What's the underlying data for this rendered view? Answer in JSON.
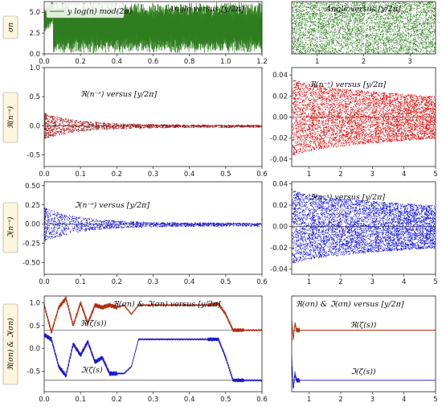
{
  "chart_data": [
    {
      "id": "angle-left",
      "type": "line",
      "title": "Angle versus [y/2π]",
      "legend": "y log(n) mod(2π)",
      "ylabel": "σn",
      "xlim": [
        0,
        1.2
      ],
      "ylim": [
        0,
        6.28
      ],
      "xticks": [
        "0.0",
        "0.2",
        "0.4",
        "0.6",
        "0.8",
        "1.0",
        "1.2"
      ],
      "yticks": [
        "0.0",
        "2.5",
        "5.0"
      ],
      "color": "#2e7d1e",
      "note": "dense oscillating angle values in [0, 2π]"
    },
    {
      "id": "angle-right",
      "type": "scatter",
      "title": "Angle versus [y/2π]",
      "xlim": [
        0.45,
        3.55
      ],
      "ylim": [
        0,
        6.28
      ],
      "xticks": [
        "1",
        "2",
        "3"
      ],
      "color": "#2e7d1e"
    },
    {
      "id": "real-left",
      "type": "scatter",
      "title": "ℜ(n⁻ˢ) versus [y/2π]",
      "ylabel": "ℜ(n⁻ˢ)",
      "xlim": [
        0,
        0.6
      ],
      "ylim": [
        -0.7,
        1.0
      ],
      "xticks": [
        "0.0",
        "0.1",
        "0.2",
        "0.3",
        "0.4",
        "0.5",
        "0.6"
      ],
      "yticks": [
        "-0.5",
        "0.0",
        "0.5",
        "1.0"
      ],
      "color": "#a01818",
      "envelope_start": 0.2
    },
    {
      "id": "real-right",
      "type": "scatter",
      "title": "ℜ(n⁻ˢ) versus [y/2π]",
      "xlim": [
        0.45,
        5.0
      ],
      "ylim": [
        -0.047,
        0.047
      ],
      "xticks": [
        "1",
        "2",
        "3",
        "4",
        "5"
      ],
      "yticks": [
        "-0.04",
        "-0.02",
        "0.00",
        "0.02",
        "0.04"
      ],
      "color": "#dd1a1a",
      "envelope_start": 0.038,
      "envelope_end": 0.02
    },
    {
      "id": "imag-left",
      "type": "scatter",
      "title": "ℑ(n⁻ˢ) versus [y/2π]",
      "ylabel": "ℑ(n⁻ˢ)",
      "xlim": [
        0,
        0.6
      ],
      "ylim": [
        -0.65,
        0.55
      ],
      "xticks": [
        "0.0",
        "0.1",
        "0.2",
        "0.3",
        "0.4",
        "0.5",
        "0.6"
      ],
      "yticks": [
        "-0.50",
        "-0.25",
        "0.00",
        "0.25",
        "0.50"
      ],
      "color": "#1a1ad0",
      "envelope_start": 0.2
    },
    {
      "id": "imag-right",
      "type": "scatter",
      "title": "ℑ(n⁻ˢ) versus [y/2π]",
      "xlim": [
        0.45,
        5.0
      ],
      "ylim": [
        -0.045,
        0.042
      ],
      "xticks": [
        "1",
        "2",
        "3",
        "4",
        "5"
      ],
      "yticks": [
        "-0.04",
        "-0.02",
        "0.00",
        "0.02",
        "0.04"
      ],
      "color": "#1a1ae0",
      "envelope_start": 0.036,
      "envelope_end": 0.02
    },
    {
      "id": "sum-left",
      "type": "line",
      "title": "ℜ(σn) & ℑ(σn) versus [y/2π]",
      "ylabel": "ℜ(σn) & ℑ(σn)",
      "xlim": [
        0,
        0.6
      ],
      "ylim": [
        -0.95,
        1.15
      ],
      "xticks": [
        "0.0",
        "0.1",
        "0.2",
        "0.3",
        "0.4",
        "0.5",
        "0.6"
      ],
      "yticks": [
        "-0.5",
        "0.0",
        "0.5",
        "1.0"
      ],
      "real_ref": 0.4,
      "imag_ref": -0.7,
      "real_label": "ℜ(ζ(s))",
      "imag_label": "ℑ(ζ(s)",
      "series": [
        {
          "name": "ℜ(σn)",
          "color": "#b03010",
          "x": [
            0,
            0.02,
            0.04,
            0.06,
            0.08,
            0.1,
            0.12,
            0.14,
            0.16,
            0.18,
            0.2,
            0.22,
            0.24,
            0.26,
            0.3,
            0.35,
            0.4,
            0.45,
            0.48,
            0.5,
            0.52,
            0.55,
            0.6
          ],
          "y": [
            0.95,
            0.35,
            0.9,
            1.1,
            0.5,
            1.0,
            0.55,
            0.95,
            0.9,
            0.95,
            0.9,
            0.95,
            0.75,
            0.95,
            0.95,
            0.95,
            0.95,
            0.95,
            0.98,
            0.75,
            0.4,
            0.4,
            0.4
          ]
        },
        {
          "name": "ℑ(σn)",
          "color": "#1a1ad0",
          "x": [
            0,
            0.02,
            0.04,
            0.06,
            0.08,
            0.1,
            0.12,
            0.14,
            0.16,
            0.18,
            0.2,
            0.22,
            0.24,
            0.26,
            0.3,
            0.35,
            0.4,
            0.45,
            0.48,
            0.5,
            0.52,
            0.55,
            0.6
          ],
          "y": [
            0.3,
            0.2,
            -0.4,
            -0.6,
            0.1,
            -0.15,
            0.15,
            -0.3,
            -0.2,
            -0.55,
            -0.55,
            -0.55,
            -0.4,
            0.2,
            0.2,
            0.2,
            0.2,
            0.2,
            0.2,
            -0.2,
            -0.7,
            -0.7,
            -0.7
          ]
        }
      ]
    },
    {
      "id": "sum-right",
      "type": "line",
      "title": "ℜ(σn) & ℑ(σn) versus [y/2π]",
      "xlim": [
        0.45,
        5.0
      ],
      "ylim": [
        -0.95,
        1.15
      ],
      "xticks": [
        "1",
        "2",
        "3",
        "4",
        "5"
      ],
      "real_ref": 0.4,
      "imag_ref": -0.7,
      "real_label": "ℜ(ζ(s))",
      "imag_label": "ℑ(ζ(s))",
      "series": [
        {
          "name": "ℜ(σn)",
          "color": "#b03010",
          "x": [
            0.45,
            0.5,
            0.55,
            0.6,
            0.7,
            5.0
          ],
          "y": [
            0.6,
            0.2,
            0.55,
            0.4,
            0.4,
            0.4
          ]
        },
        {
          "name": "ℑ(σn)",
          "color": "#1a1ad0",
          "x": [
            0.45,
            0.5,
            0.55,
            0.6,
            0.7,
            5.0
          ],
          "y": [
            -0.2,
            -0.9,
            -0.55,
            -0.7,
            -0.7,
            -0.7
          ]
        }
      ]
    }
  ]
}
